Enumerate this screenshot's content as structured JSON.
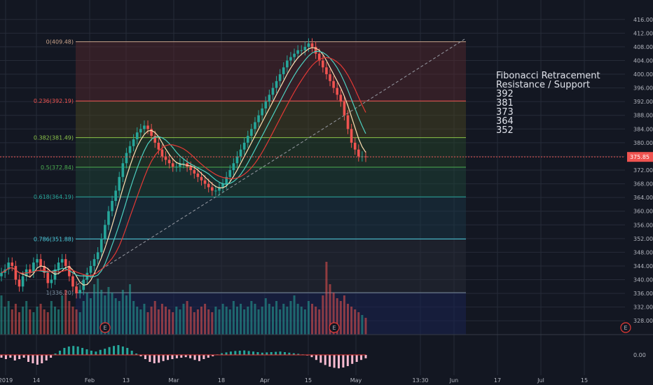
{
  "colors": {
    "background": "#131722",
    "grid": "#262b38",
    "up": "#26a69a",
    "down": "#ef5350",
    "ma_fast": "#ffe0b2",
    "ma_mid": "#4dd0c1",
    "ma_slow": "#e53935",
    "price_tag": "#ef5350"
  },
  "price_axis": {
    "ticks": [
      "416.00",
      "412.00",
      "408.00",
      "404.00",
      "400.00",
      "396.00",
      "392.00",
      "388.00",
      "384.00",
      "380.00",
      "376.00",
      "372.00",
      "368.00",
      "364.00",
      "360.00",
      "356.00",
      "352.00",
      "348.00",
      "344.00",
      "340.00",
      "336.00",
      "332.00",
      "328.00"
    ],
    "current_price": "375.85"
  },
  "indicator_axis": {
    "label": "0.00"
  },
  "time_axis": {
    "ticks": [
      "2019",
      "14",
      "Feb",
      "13",
      "Mar",
      "18",
      "Apr",
      "15",
      "May",
      "13:30",
      "Jun",
      "17",
      "Jul",
      "15"
    ]
  },
  "earnings_marker": "E",
  "note_lines": [
    "Fibonacci Retracement",
    "Resistance / Support",
    "392",
    "381",
    "373",
    "364",
    "352"
  ],
  "chart_data": {
    "type": "candlestick",
    "title": "",
    "ylabel": "",
    "ylim": [
      326,
      418
    ],
    "fibonacci": [
      {
        "label": "0(409.48)",
        "ratio": 0,
        "price": 409.48,
        "color": "#c9a38a"
      },
      {
        "label": "0.236(392.19)",
        "ratio": 0.236,
        "price": 392.19,
        "color": "#ef5350"
      },
      {
        "label": "0.382(381.49)",
        "ratio": 0.382,
        "price": 381.49,
        "color": "#8bc34a"
      },
      {
        "label": "0.5(372.84)",
        "ratio": 0.5,
        "price": 372.84,
        "color": "#4caf50"
      },
      {
        "label": "0.618(364.19)",
        "ratio": 0.618,
        "price": 364.19,
        "color": "#26a69a"
      },
      {
        "label": "0.786(351.88)",
        "ratio": 0.786,
        "price": 351.88,
        "color": "#4dd0e1"
      },
      {
        "label": "1(336.20)",
        "ratio": 1,
        "price": 336.2,
        "color": "#7b8fa0"
      }
    ],
    "trendline": {
      "from": {
        "date": "Jan 22",
        "price": 338.5
      },
      "to": {
        "date": "Jun 5",
        "price": 410.5
      }
    },
    "series": [
      {
        "name": "",
        "type": "close",
        "values": [
          342,
          343,
          345,
          344,
          340,
          338,
          341,
          343,
          342,
          345,
          346,
          344,
          342,
          339,
          340,
          343,
          345,
          346,
          344,
          341,
          338,
          336,
          337,
          340,
          342,
          344,
          346,
          348,
          352,
          356,
          360,
          363,
          366,
          370,
          374,
          377,
          379,
          381,
          383,
          384,
          385,
          384,
          382,
          380,
          378,
          376,
          375,
          374,
          373,
          373,
          374,
          374,
          373,
          372,
          371,
          370,
          369,
          368,
          367,
          366,
          366,
          367,
          368,
          370,
          372,
          374,
          376,
          378,
          380,
          382,
          384,
          386,
          388,
          390,
          392,
          394,
          396,
          398,
          400,
          402,
          404,
          405,
          406,
          407,
          407,
          408,
          409,
          408,
          406,
          404,
          402,
          400,
          398,
          396,
          394,
          392,
          388,
          384,
          380,
          378,
          376,
          376,
          375.85
        ]
      }
    ],
    "volume": [
      14,
      10,
      12,
      9,
      11,
      8,
      10,
      12,
      9,
      8,
      10,
      11,
      9,
      8,
      12,
      10,
      9,
      14,
      16,
      12,
      10,
      9,
      8,
      12,
      15,
      13,
      18,
      20,
      16,
      14,
      17,
      15,
      13,
      12,
      16,
      14,
      18,
      12,
      10,
      9,
      11,
      8,
      10,
      12,
      9,
      11,
      10,
      9,
      8,
      10,
      9,
      11,
      12,
      10,
      8,
      9,
      10,
      11,
      9,
      8,
      10,
      9,
      11,
      10,
      9,
      12,
      10,
      11,
      9,
      10,
      12,
      11,
      9,
      10,
      13,
      11,
      10,
      12,
      9,
      11,
      10,
      12,
      14,
      11,
      10,
      9,
      12,
      11,
      10,
      9,
      14,
      26,
      18,
      15,
      13,
      12,
      14,
      11,
      10,
      9,
      8,
      7,
      6
    ],
    "macd_histogram": [
      -1,
      -1.5,
      -1,
      -2,
      -1.5,
      -1,
      -2.5,
      -3,
      -3.5,
      -3,
      -2,
      -1,
      0.5,
      1.5,
      2.5,
      3,
      3.2,
      3,
      2.5,
      2,
      1.5,
      1.2,
      1.8,
      2.2,
      2.8,
      3.2,
      3.5,
      3,
      2.5,
      1.5,
      0.5,
      -0.5,
      -1.5,
      -2.5,
      -3,
      -2.8,
      -2.2,
      -1.8,
      -1.5,
      -1.2,
      -1,
      -0.8,
      -1.2,
      -1.8,
      -2.2,
      -1.5,
      -1,
      -0.5,
      0.2,
      0.6,
      0.9,
      1.2,
      1.4,
      1.5,
      1.6,
      1.4,
      1.2,
      1,
      0.8,
      0.9,
      1,
      1.1,
      1.2,
      1,
      0.8,
      0.6,
      0.4,
      0.2,
      -0.2,
      -0.8,
      -1.8,
      -2.8,
      -3.6,
      -4.2,
      -4.6,
      -4.8,
      -4.5,
      -4,
      -3.2,
      -2.5,
      -1.8,
      -1.2
    ]
  }
}
